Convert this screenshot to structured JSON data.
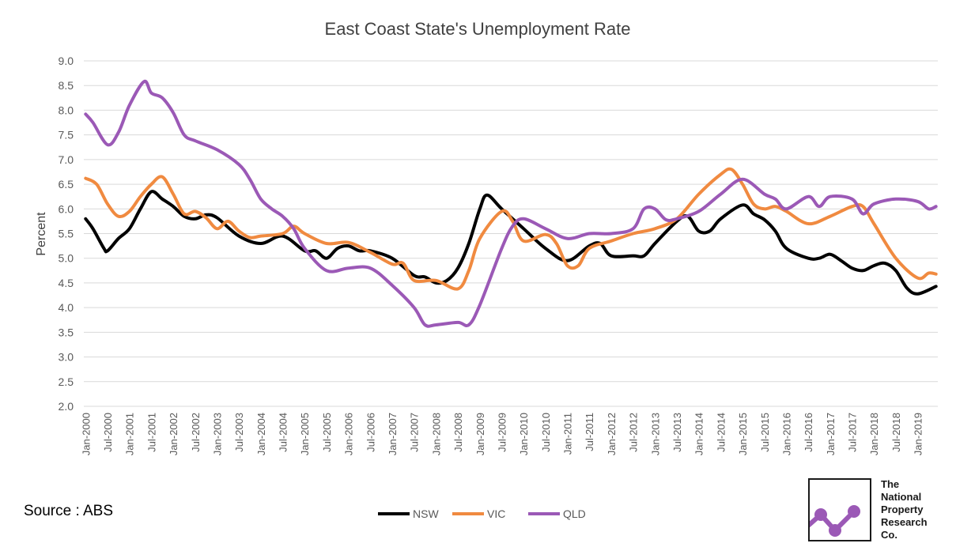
{
  "chart_data": {
    "type": "line",
    "title": "East Coast State's Unemployment Rate",
    "xlabel": "",
    "ylabel": "Percent",
    "ylim": [
      2.0,
      9.0
    ],
    "yticks": [
      "2.0",
      "2.5",
      "3.0",
      "3.5",
      "4.0",
      "4.5",
      "5.0",
      "5.5",
      "6.0",
      "6.5",
      "7.0",
      "7.5",
      "8.0",
      "8.5",
      "9.0"
    ],
    "xticks": [
      "Jan-2000",
      "Jul-2000",
      "Jan-2001",
      "Jul-2001",
      "Jan-2002",
      "Jul-2002",
      "Jan-2003",
      "Jul-2003",
      "Jan-2004",
      "Jul-2004",
      "Jan-2005",
      "Jul-2005",
      "Jan-2006",
      "Jul-2006",
      "Jan-2007",
      "Jul-2007",
      "Jan-2008",
      "Jul-2008",
      "Jan-2009",
      "Jul-2009",
      "Jan-2010",
      "Jul-2010",
      "Jan-2011",
      "Jul-2011",
      "Jan-2012",
      "Jul-2012",
      "Jan-2013",
      "Jul-2013",
      "Jan-2014",
      "Jul-2014",
      "Jan-2015",
      "Jul-2015",
      "Jan-2016",
      "Jul-2016",
      "Jan-2017",
      "Jul-2017",
      "Jan-2018",
      "Jul-2018",
      "Jan-2019"
    ],
    "grid": true,
    "legend_position": "bottom",
    "series": [
      {
        "name": "NSW",
        "color": "#000000",
        "points": [
          [
            "Jan-2000",
            5.8
          ],
          [
            "Mar-2000",
            5.6
          ],
          [
            "Jun-2000",
            5.2
          ],
          [
            "Jul-2000",
            5.15
          ],
          [
            "Oct-2000",
            5.4
          ],
          [
            "Jan-2001",
            5.6
          ],
          [
            "Apr-2001",
            6.0
          ],
          [
            "Jul-2001",
            6.35
          ],
          [
            "Oct-2001",
            6.2
          ],
          [
            "Jan-2002",
            6.05
          ],
          [
            "Apr-2002",
            5.85
          ],
          [
            "Jul-2002",
            5.8
          ],
          [
            "Oct-2002",
            5.88
          ],
          [
            "Jan-2003",
            5.82
          ],
          [
            "Jul-2003",
            5.45
          ],
          [
            "Jan-2004",
            5.3
          ],
          [
            "Jul-2004",
            5.45
          ],
          [
            "Jan-2005",
            5.15
          ],
          [
            "Apr-2005",
            5.15
          ],
          [
            "Jul-2005",
            5.0
          ],
          [
            "Oct-2005",
            5.2
          ],
          [
            "Jan-2006",
            5.25
          ],
          [
            "Apr-2006",
            5.15
          ],
          [
            "Jul-2006",
            5.15
          ],
          [
            "Jan-2007",
            5.0
          ],
          [
            "Jul-2007",
            4.65
          ],
          [
            "Oct-2007",
            4.62
          ],
          [
            "Jan-2008",
            4.5
          ],
          [
            "Apr-2008",
            4.55
          ],
          [
            "Jul-2008",
            4.8
          ],
          [
            "Oct-2008",
            5.3
          ],
          [
            "Jan-2009",
            6.0
          ],
          [
            "Mar-2009",
            6.28
          ],
          [
            "Jul-2009",
            6.0
          ],
          [
            "Jan-2010",
            5.6
          ],
          [
            "Jul-2010",
            5.2
          ],
          [
            "Jan-2011",
            4.95
          ],
          [
            "Jul-2011",
            5.25
          ],
          [
            "Oct-2011",
            5.3
          ],
          [
            "Jan-2012",
            5.05
          ],
          [
            "Jul-2012",
            5.05
          ],
          [
            "Oct-2012",
            5.05
          ],
          [
            "Jan-2013",
            5.3
          ],
          [
            "Jul-2013",
            5.75
          ],
          [
            "Oct-2013",
            5.85
          ],
          [
            "Jan-2014",
            5.55
          ],
          [
            "Apr-2014",
            5.55
          ],
          [
            "Jul-2014",
            5.8
          ],
          [
            "Jan-2015",
            6.08
          ],
          [
            "Apr-2015",
            5.9
          ],
          [
            "Jul-2015",
            5.78
          ],
          [
            "Oct-2015",
            5.55
          ],
          [
            "Jan-2016",
            5.2
          ],
          [
            "Jul-2016",
            5.0
          ],
          [
            "Oct-2016",
            5.0
          ],
          [
            "Jan-2017",
            5.08
          ],
          [
            "Apr-2017",
            4.95
          ],
          [
            "Jul-2017",
            4.8
          ],
          [
            "Oct-2017",
            4.75
          ],
          [
            "Jan-2018",
            4.85
          ],
          [
            "Apr-2018",
            4.9
          ],
          [
            "Jul-2018",
            4.75
          ],
          [
            "Oct-2018",
            4.4
          ],
          [
            "Jan-2019",
            4.28
          ],
          [
            "Jun-2019",
            4.43
          ]
        ]
      },
      {
        "name": "VIC",
        "color": "#f08a40",
        "points": [
          [
            "Jan-2000",
            6.62
          ],
          [
            "Apr-2000",
            6.5
          ],
          [
            "Jul-2000",
            6.1
          ],
          [
            "Oct-2000",
            5.85
          ],
          [
            "Jan-2001",
            5.95
          ],
          [
            "Apr-2001",
            6.25
          ],
          [
            "Jul-2001",
            6.5
          ],
          [
            "Oct-2001",
            6.65
          ],
          [
            "Jan-2002",
            6.3
          ],
          [
            "Apr-2002",
            5.9
          ],
          [
            "Jul-2002",
            5.95
          ],
          [
            "Oct-2002",
            5.82
          ],
          [
            "Jan-2003",
            5.6
          ],
          [
            "Apr-2003",
            5.75
          ],
          [
            "Jul-2003",
            5.55
          ],
          [
            "Oct-2003",
            5.42
          ],
          [
            "Jan-2004",
            5.45
          ],
          [
            "Jul-2004",
            5.5
          ],
          [
            "Oct-2004",
            5.65
          ],
          [
            "Jan-2005",
            5.5
          ],
          [
            "Jul-2005",
            5.3
          ],
          [
            "Jan-2006",
            5.32
          ],
          [
            "Jul-2006",
            5.12
          ],
          [
            "Jan-2007",
            4.88
          ],
          [
            "Apr-2007",
            4.9
          ],
          [
            "Jul-2007",
            4.55
          ],
          [
            "Jan-2008",
            4.55
          ],
          [
            "Jul-2008",
            4.38
          ],
          [
            "Oct-2008",
            4.75
          ],
          [
            "Jan-2009",
            5.4
          ],
          [
            "Jul-2009",
            5.95
          ],
          [
            "Oct-2009",
            5.75
          ],
          [
            "Jan-2010",
            5.35
          ],
          [
            "Jul-2010",
            5.48
          ],
          [
            "Oct-2010",
            5.3
          ],
          [
            "Jan-2011",
            4.85
          ],
          [
            "Apr-2011",
            4.85
          ],
          [
            "Jul-2011",
            5.2
          ],
          [
            "Jan-2012",
            5.35
          ],
          [
            "Jul-2012",
            5.5
          ],
          [
            "Jan-2013",
            5.6
          ],
          [
            "Jul-2013",
            5.8
          ],
          [
            "Jan-2014",
            6.3
          ],
          [
            "Jul-2014",
            6.7
          ],
          [
            "Oct-2014",
            6.8
          ],
          [
            "Jan-2015",
            6.5
          ],
          [
            "Apr-2015",
            6.1
          ],
          [
            "Jul-2015",
            6.0
          ],
          [
            "Oct-2015",
            6.05
          ],
          [
            "Jan-2016",
            5.95
          ],
          [
            "Jul-2016",
            5.7
          ],
          [
            "Jan-2017",
            5.85
          ],
          [
            "Jul-2017",
            6.05
          ],
          [
            "Oct-2017",
            6.05
          ],
          [
            "Jan-2018",
            5.7
          ],
          [
            "Jul-2018",
            5.0
          ],
          [
            "Jan-2019",
            4.6
          ],
          [
            "Apr-2019",
            4.7
          ],
          [
            "Jun-2019",
            4.68
          ]
        ]
      },
      {
        "name": "QLD",
        "color": "#9b59b6",
        "points": [
          [
            "Jan-2000",
            7.92
          ],
          [
            "Mar-2000",
            7.75
          ],
          [
            "Jul-2000",
            7.3
          ],
          [
            "Oct-2000",
            7.55
          ],
          [
            "Jan-2001",
            8.1
          ],
          [
            "May-2001",
            8.58
          ],
          [
            "Jul-2001",
            8.35
          ],
          [
            "Oct-2001",
            8.25
          ],
          [
            "Jan-2002",
            7.95
          ],
          [
            "Apr-2002",
            7.5
          ],
          [
            "Jul-2002",
            7.38
          ],
          [
            "Jan-2003",
            7.2
          ],
          [
            "Jul-2003",
            6.9
          ],
          [
            "Oct-2003",
            6.6
          ],
          [
            "Jan-2004",
            6.2
          ],
          [
            "Apr-2004",
            6.0
          ],
          [
            "Jul-2004",
            5.85
          ],
          [
            "Oct-2004",
            5.6
          ],
          [
            "Jan-2005",
            5.2
          ],
          [
            "Jul-2005",
            4.75
          ],
          [
            "Jan-2006",
            4.8
          ],
          [
            "Jul-2006",
            4.8
          ],
          [
            "Jan-2007",
            4.45
          ],
          [
            "Jul-2007",
            4.0
          ],
          [
            "Oct-2007",
            3.65
          ],
          [
            "Jan-2008",
            3.65
          ],
          [
            "Jul-2008",
            3.7
          ],
          [
            "Oct-2008",
            3.65
          ],
          [
            "Jan-2009",
            4.05
          ],
          [
            "Jul-2009",
            5.2
          ],
          [
            "Oct-2009",
            5.65
          ],
          [
            "Jan-2010",
            5.8
          ],
          [
            "Jul-2010",
            5.6
          ],
          [
            "Jan-2011",
            5.4
          ],
          [
            "Jul-2011",
            5.5
          ],
          [
            "Jan-2012",
            5.5
          ],
          [
            "Jul-2012",
            5.6
          ],
          [
            "Oct-2012",
            6.0
          ],
          [
            "Jan-2013",
            6.0
          ],
          [
            "Apr-2013",
            5.78
          ],
          [
            "Jul-2013",
            5.8
          ],
          [
            "Jan-2014",
            5.95
          ],
          [
            "Jul-2014",
            6.3
          ],
          [
            "Jan-2015",
            6.6
          ],
          [
            "Jul-2015",
            6.3
          ],
          [
            "Oct-2015",
            6.2
          ],
          [
            "Jan-2016",
            6.0
          ],
          [
            "Jul-2016",
            6.25
          ],
          [
            "Oct-2016",
            6.05
          ],
          [
            "Jan-2017",
            6.25
          ],
          [
            "Jul-2017",
            6.2
          ],
          [
            "Oct-2017",
            5.9
          ],
          [
            "Jan-2018",
            6.1
          ],
          [
            "Jul-2018",
            6.2
          ],
          [
            "Jan-2019",
            6.15
          ],
          [
            "Apr-2019",
            6.0
          ],
          [
            "Jun-2019",
            6.05
          ]
        ]
      }
    ],
    "source": "Source : ABS"
  },
  "logo": {
    "lines": [
      "The",
      "National",
      "Property",
      "Research",
      "Co."
    ],
    "icon": "trend-line-icon",
    "icon_color": "#9b59b6"
  }
}
